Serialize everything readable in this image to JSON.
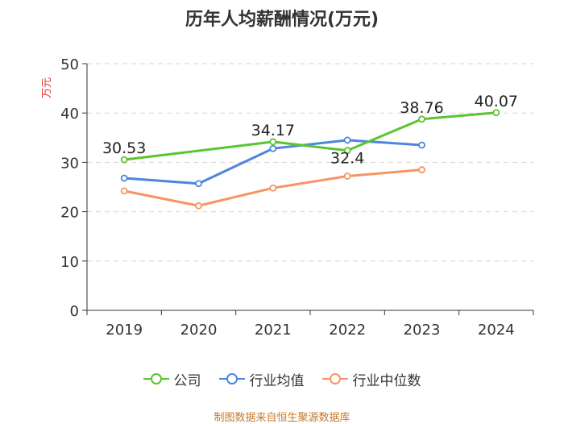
{
  "chart_data": {
    "type": "line",
    "title": "历年人均薪酬情况(万元)",
    "ylabel": "万元",
    "xlabel": "",
    "ylim": [
      0,
      50
    ],
    "yticks": [
      0,
      10,
      20,
      30,
      40,
      50
    ],
    "categories": [
      "2019",
      "2020",
      "2021",
      "2022",
      "2023",
      "2024"
    ],
    "series": [
      {
        "name": "公司",
        "color": "#5ac531",
        "values": [
          30.53,
          null,
          34.17,
          32.4,
          38.76,
          40.07
        ],
        "labels": [
          "30.53",
          null,
          "34.17",
          "32.4",
          "38.76",
          "40.07"
        ]
      },
      {
        "name": "行业均值",
        "color": "#4e86dd",
        "values": [
          26.8,
          25.7,
          32.8,
          34.5,
          33.5,
          null
        ]
      },
      {
        "name": "行业中位数",
        "color": "#f79465",
        "values": [
          24.2,
          21.2,
          24.8,
          27.2,
          28.5,
          null
        ]
      }
    ],
    "legend_position": "bottom",
    "grid": true
  },
  "footer": {
    "source": "制图数据来自恒生聚源数据库"
  }
}
